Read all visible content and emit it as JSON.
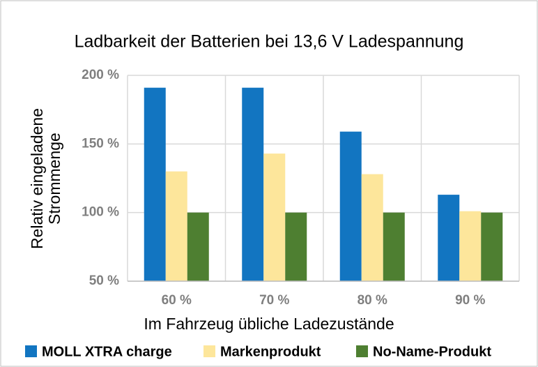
{
  "chart_data": {
    "type": "bar",
    "title": "Ladbarkeit der Batterien bei 13,6 V Ladespannung",
    "x_label": "Im Fahrzeug übliche Ladezustände",
    "y_label": [
      "Relativ eingeladene",
      "Strommenge"
    ],
    "categories": [
      "60 %",
      "70 %",
      "80 %",
      "90 %"
    ],
    "series": [
      {
        "name": "MOLL XTRA charge",
        "color": "#1275c1",
        "values": [
          191,
          191,
          159,
          113
        ]
      },
      {
        "name": "Markenprodukt",
        "color": "#fde69b",
        "values": [
          130,
          143,
          128,
          101
        ]
      },
      {
        "name": "No-Name-Produkt",
        "color": "#4e7f31",
        "values": [
          100,
          100,
          100,
          100
        ]
      }
    ],
    "ylim": [
      50,
      200
    ],
    "yticks": [
      {
        "value": 50,
        "label": "50 %"
      },
      {
        "value": 100,
        "label": "100 %"
      },
      {
        "value": 150,
        "label": "150 %"
      },
      {
        "value": 200,
        "label": "200 %"
      }
    ],
    "grid": true,
    "legend": "bottom"
  }
}
